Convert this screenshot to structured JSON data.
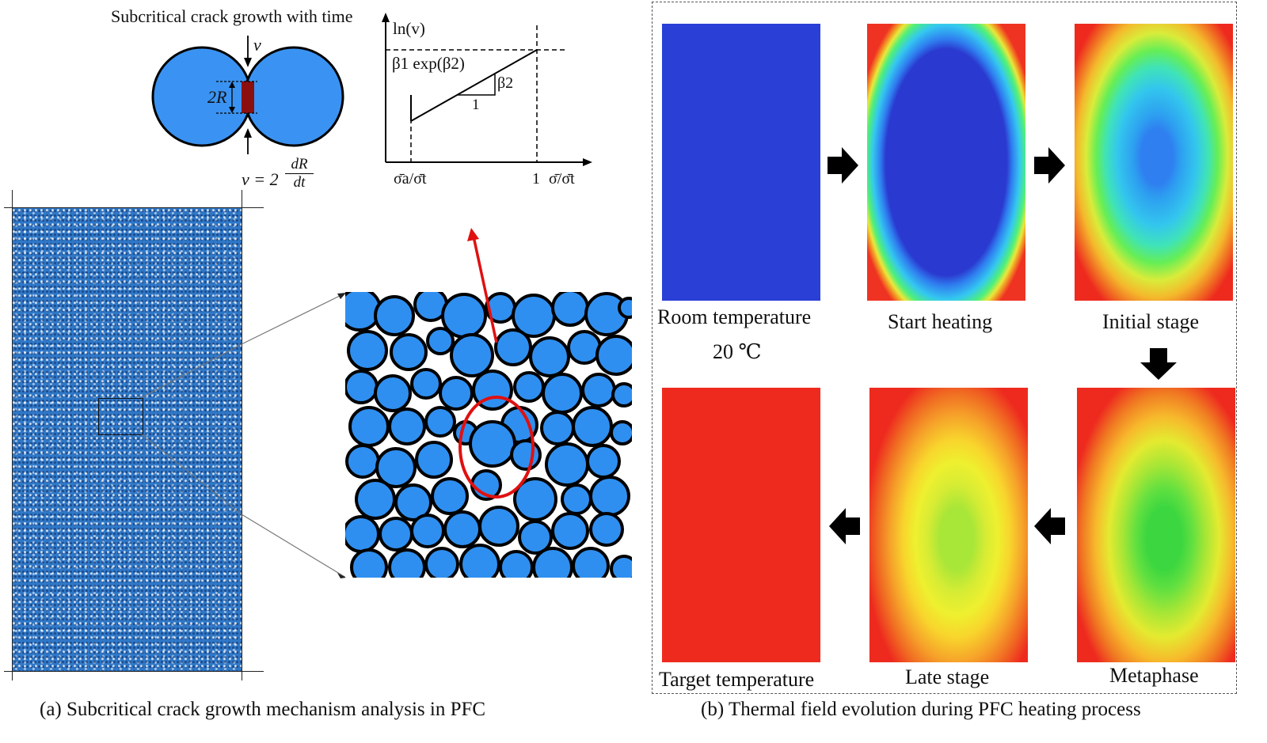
{
  "panel_a": {
    "mechanism_title": "Subcritical crack growth with time",
    "label_v_top": "v",
    "label_2R": "2R",
    "formula_v": "v = 2",
    "formula_num": "dR",
    "formula_den": "dt",
    "graph": {
      "y_label": "ln(v)",
      "line_label": "β1 exp(β2)",
      "slope_label": "β2",
      "run_label": "1",
      "x_tick_a": "σ̄a/σ̄t",
      "x_tick_1": "1",
      "x_label": "σ̄/σ̄t"
    },
    "caption": "(a)  Subcritical crack growth mechanism analysis in PFC"
  },
  "panel_b": {
    "stages": {
      "room": "Room temperature",
      "room_temp": "20 ℃",
      "start": "Start heating",
      "initial": "Initial stage",
      "metaphase": "Metaphase",
      "late": "Late stage",
      "target": "Target temperature"
    },
    "caption": "(b) Thermal field evolution during PFC heating process"
  },
  "colors": {
    "particle_blue": "#2f8ff0",
    "dark_blue": "#2a3fd6",
    "bond_red": "#8b0f0f",
    "hot_red": "#ee2a1f",
    "highlight_red": "#e01010"
  }
}
